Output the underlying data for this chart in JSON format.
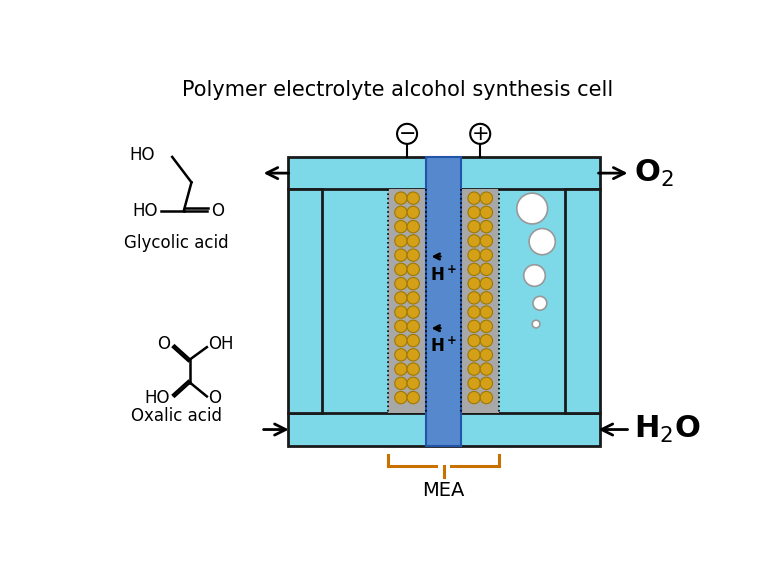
{
  "title": "Polymer electrolyte alcohol synthesis cell",
  "title_fontsize": 15,
  "background_color": "#ffffff",
  "cell_color": "#7dd8e8",
  "cell_edge": "#1a1a1a",
  "membrane_color": "#5588cc",
  "catalyst_color": "#d4a017",
  "catalyst_outline": "#a07800",
  "gray_layer_color": "#a8a8a8",
  "bubble_color": "#ffffff",
  "bubble_edge": "#999999",
  "mea_label": "MEA",
  "o2_label": "O$_2$",
  "h2o_label": "H$_2$O",
  "glycolic_label": "Glycolic acid",
  "oxalic_label": "Oxalic acid",
  "mea_brace_color": "#c87000"
}
